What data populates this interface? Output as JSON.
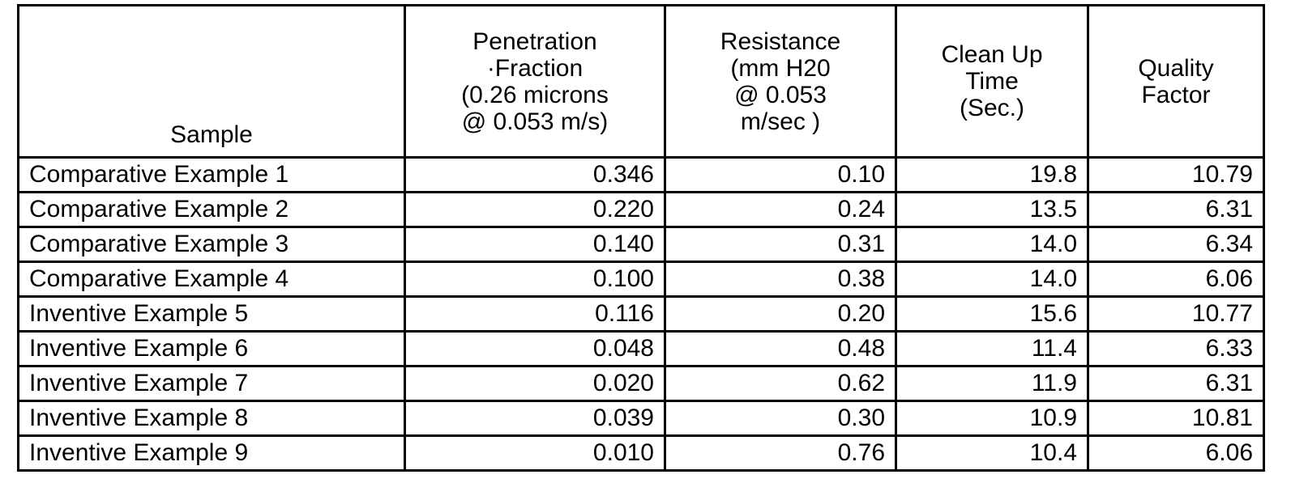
{
  "table": {
    "headers": [
      "Sample",
      "Penetration\n·Fraction\n(0.26 microns\n@ 0.053 m/s)",
      "Resistance\n(mm H20\n@ 0.053\nm/sec )",
      "Clean Up\nTime\n(Sec.)",
      "Quality\nFactor"
    ],
    "rows": [
      [
        "Comparative Example 1",
        "0.346",
        "0.10",
        "19.8",
        "10.79"
      ],
      [
        "Comparative Example 2",
        "0.220",
        "0.24",
        "13.5",
        "6.31"
      ],
      [
        "Comparative Example 3",
        "0.140",
        "0.31",
        "14.0",
        "6.34"
      ],
      [
        "Comparative Example 4",
        "0.100",
        "0.38",
        "14.0",
        "6.06"
      ],
      [
        "Inventive Example 5",
        "0.116",
        "0.20",
        "15.6",
        "10.77"
      ],
      [
        "Inventive Example 6",
        "0.048",
        "0.48",
        "11.4",
        "6.33"
      ],
      [
        "Inventive Example 7",
        "0.020",
        "0.62",
        "11.9",
        "6.31"
      ],
      [
        "Inventive Example 8",
        "0.039",
        "0.30",
        "10.9",
        "10.81"
      ],
      [
        "Inventive Example 9",
        "0.010",
        "0.76",
        "10.4",
        "6.06"
      ]
    ]
  }
}
